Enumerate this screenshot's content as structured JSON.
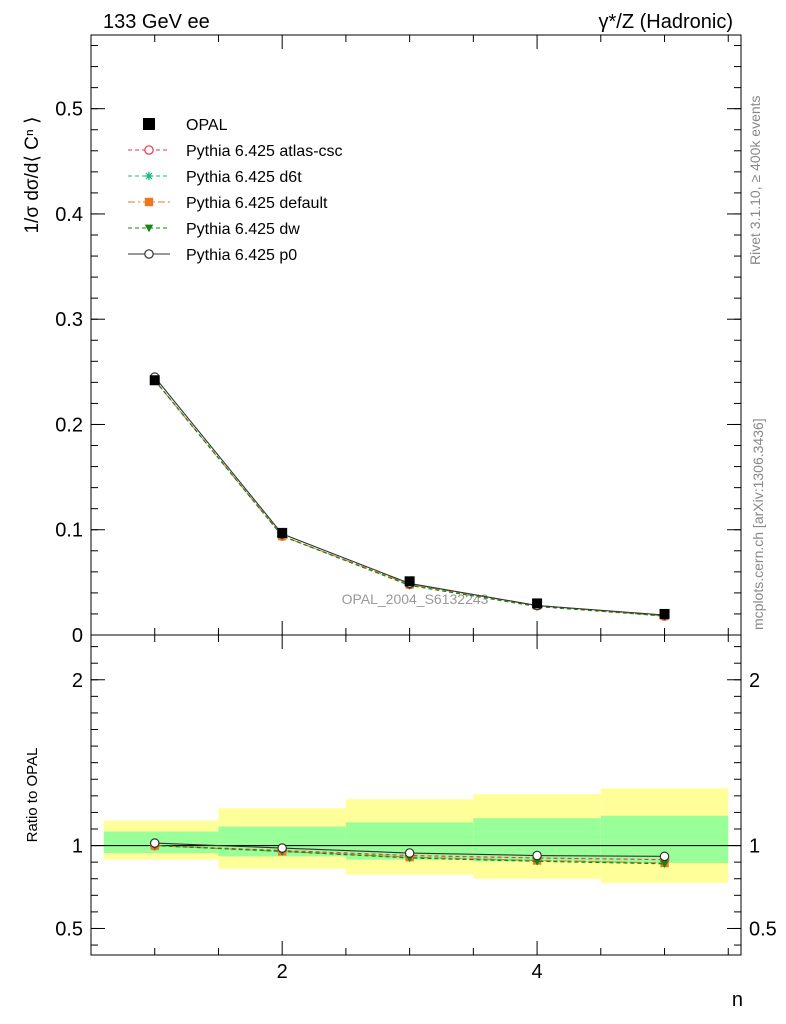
{
  "header": {
    "left_title": "133 GeV ee",
    "right_title": "γ*/Z (Hadronic)"
  },
  "side": {
    "rivet": "Rivet 3.1.10, ≥ 400k events",
    "mcplots": "mcplots.cern.ch [arXiv:1306.3436]"
  },
  "watermark": "OPAL_2004_S6132243",
  "chart_data": [
    {
      "type": "line",
      "panel": "main",
      "ylabel": "1/σ dσ/d⟨ Cⁿ ⟩",
      "ylim": [
        0,
        0.57
      ],
      "xlim": [
        0.5,
        5.6
      ],
      "yticks": [
        0,
        0.1,
        0.2,
        0.3,
        0.4,
        0.5
      ],
      "ytick_labels": [
        "0",
        "0.1",
        "0.2",
        "0.3",
        "0.4",
        "0.5"
      ],
      "x": [
        1,
        2,
        3,
        4,
        5
      ],
      "data": {
        "name": "OPAL",
        "values": [
          0.242,
          0.097,
          0.051,
          0.03,
          0.02
        ],
        "errors": [
          0.002,
          0.0015,
          0.0012,
          0.001,
          0.001
        ]
      },
      "series": [
        {
          "name": "Pythia 6.425 atlas-csc",
          "color": "#ee3344",
          "dash": "4,3",
          "marker": "open-circle",
          "values": [
            0.242,
            0.094,
            0.048,
            0.028,
            0.018
          ]
        },
        {
          "name": "Pythia 6.425 d6t",
          "color": "#11bb88",
          "dash": "4,3",
          "marker": "star",
          "values": [
            0.242,
            0.094,
            0.048,
            0.028,
            0.018
          ]
        },
        {
          "name": "Pythia 6.425 default",
          "color": "#ee7722",
          "dash": "7,3,2,3",
          "marker": "filled-square",
          "values": [
            0.242,
            0.094,
            0.048,
            0.028,
            0.018
          ]
        },
        {
          "name": "Pythia 6.425 dw",
          "color": "#118811",
          "dash": "4,3",
          "marker": "filled-triangle-down",
          "values": [
            0.242,
            0.094,
            0.047,
            0.027,
            0.018
          ]
        },
        {
          "name": "Pythia 6.425 p0",
          "color": "#333333",
          "dash": "",
          "marker": "open-circle",
          "values": [
            0.245,
            0.096,
            0.049,
            0.028,
            0.019
          ]
        }
      ]
    },
    {
      "type": "line",
      "panel": "ratio",
      "ylabel": "Ratio to OPAL",
      "xlabel": "n",
      "ylim": [
        0.34,
        2.27
      ],
      "yticks": [
        0.5,
        1,
        2
      ],
      "ytick_labels": [
        "0.5",
        "1",
        "2"
      ],
      "xticks": [
        2,
        4
      ],
      "xtick_labels": [
        "2",
        "4"
      ],
      "x": [
        1,
        2,
        3,
        4,
        5
      ],
      "bins": [
        [
          0.6,
          1.5
        ],
        [
          1.5,
          2.5
        ],
        [
          2.5,
          3.5
        ],
        [
          3.5,
          4.5
        ],
        [
          4.5,
          5.5
        ]
      ],
      "band_inner": [
        [
          0.955,
          1.085
        ],
        [
          0.935,
          1.115
        ],
        [
          0.915,
          1.14
        ],
        [
          0.905,
          1.165
        ],
        [
          0.895,
          1.18
        ]
      ],
      "band_outer": [
        [
          0.915,
          1.15
        ],
        [
          0.86,
          1.225
        ],
        [
          0.825,
          1.28
        ],
        [
          0.8,
          1.31
        ],
        [
          0.775,
          1.345
        ]
      ],
      "series": [
        {
          "name": "Pythia 6.425 atlas-csc",
          "values": [
            1.0,
            0.97,
            0.94,
            0.925,
            0.915
          ]
        },
        {
          "name": "Pythia 6.425 d6t",
          "values": [
            1.0,
            0.965,
            0.93,
            0.91,
            0.895
          ]
        },
        {
          "name": "Pythia 6.425 default",
          "values": [
            1.0,
            0.965,
            0.93,
            0.91,
            0.895
          ]
        },
        {
          "name": "Pythia 6.425 dw",
          "values": [
            1.0,
            0.965,
            0.925,
            0.905,
            0.89
          ]
        },
        {
          "name": "Pythia 6.425 p0",
          "values": [
            1.015,
            0.985,
            0.955,
            0.94,
            0.935
          ]
        }
      ]
    }
  ]
}
